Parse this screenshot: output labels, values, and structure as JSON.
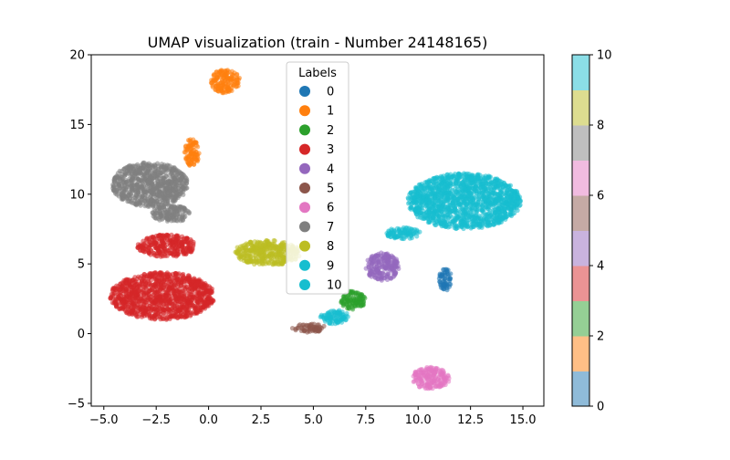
{
  "chart_data": {
    "type": "scatter",
    "title": "UMAP visualization (train - Number 24148165)",
    "xlabel": "",
    "ylabel": "",
    "xlim": [
      -5.6,
      16.0
    ],
    "ylim": [
      -5.2,
      20.0
    ],
    "xticks": [
      -5.0,
      -2.5,
      0.0,
      2.5,
      5.0,
      7.5,
      10.0,
      12.5,
      15.0
    ],
    "xtick_labels": [
      "−5.0",
      "−2.5",
      "0.0",
      "2.5",
      "5.0",
      "7.5",
      "10.0",
      "12.5",
      "15.0"
    ],
    "yticks": [
      -5,
      0,
      5,
      10,
      15,
      20
    ],
    "ytick_labels": [
      "−5",
      "0",
      "5",
      "10",
      "15",
      "20"
    ],
    "grid": false,
    "legend": {
      "title": "Labels",
      "placement": "top-center",
      "entries": [
        "0",
        "1",
        "2",
        "3",
        "4",
        "5",
        "6",
        "7",
        "8",
        "9",
        "10"
      ]
    },
    "series": [
      {
        "name": "0",
        "color": "#1f77b4",
        "clusters": [
          {
            "cx": 11.3,
            "cy": 3.9,
            "rx": 0.3,
            "ry": 0.8
          }
        ]
      },
      {
        "name": "1",
        "color": "#ff7f0e",
        "clusters": [
          {
            "cx": 0.8,
            "cy": 18.1,
            "rx": 0.7,
            "ry": 0.85
          },
          {
            "cx": -0.8,
            "cy": 13.0,
            "rx": 0.35,
            "ry": 1.0
          }
        ]
      },
      {
        "name": "2",
        "color": "#2ca02c",
        "clusters": [
          {
            "cx": 6.9,
            "cy": 2.4,
            "rx": 0.6,
            "ry": 0.7
          }
        ]
      },
      {
        "name": "3",
        "color": "#d62728",
        "clusters": [
          {
            "cx": -2.2,
            "cy": 2.7,
            "rx": 2.5,
            "ry": 1.7
          },
          {
            "cx": -2.0,
            "cy": 6.3,
            "rx": 1.4,
            "ry": 0.8
          }
        ]
      },
      {
        "name": "4",
        "color": "#9467bd",
        "clusters": [
          {
            "cx": 8.3,
            "cy": 4.8,
            "rx": 0.8,
            "ry": 1.0
          }
        ]
      },
      {
        "name": "5",
        "color": "#8c564b",
        "clusters": [
          {
            "cx": 4.8,
            "cy": 0.4,
            "rx": 0.8,
            "ry": 0.3
          }
        ]
      },
      {
        "name": "6",
        "color": "#e377c2",
        "clusters": [
          {
            "cx": 10.6,
            "cy": -3.2,
            "rx": 0.9,
            "ry": 0.8
          }
        ]
      },
      {
        "name": "7",
        "color": "#7f7f7f",
        "clusters": [
          {
            "cx": -2.8,
            "cy": 10.7,
            "rx": 1.8,
            "ry": 1.6
          },
          {
            "cx": -1.8,
            "cy": 8.6,
            "rx": 0.9,
            "ry": 0.6
          }
        ]
      },
      {
        "name": "8",
        "color": "#bcbd22",
        "clusters": [
          {
            "cx": 2.8,
            "cy": 5.8,
            "rx": 1.6,
            "ry": 0.9
          }
        ]
      },
      {
        "name": "9",
        "color": "#17becf",
        "clusters": [
          {
            "cx": 6.0,
            "cy": 1.2,
            "rx": 0.7,
            "ry": 0.5
          }
        ]
      },
      {
        "name": "10",
        "color": "#17becf",
        "clusters": [
          {
            "cx": 12.2,
            "cy": 9.5,
            "rx": 2.7,
            "ry": 2.0
          },
          {
            "cx": 9.3,
            "cy": 7.2,
            "rx": 0.9,
            "ry": 0.4
          }
        ]
      }
    ],
    "colorbar": {
      "min": 0,
      "max": 10,
      "ticks": [
        0,
        2,
        4,
        6,
        8,
        10
      ],
      "colors": [
        "#8fbbd9",
        "#ffbf86",
        "#95cf95",
        "#eb9394",
        "#c9b3de",
        "#c5aaa5",
        "#f1bbe0",
        "#bfbfbf",
        "#dddd90",
        "#8bdee7"
      ]
    }
  }
}
